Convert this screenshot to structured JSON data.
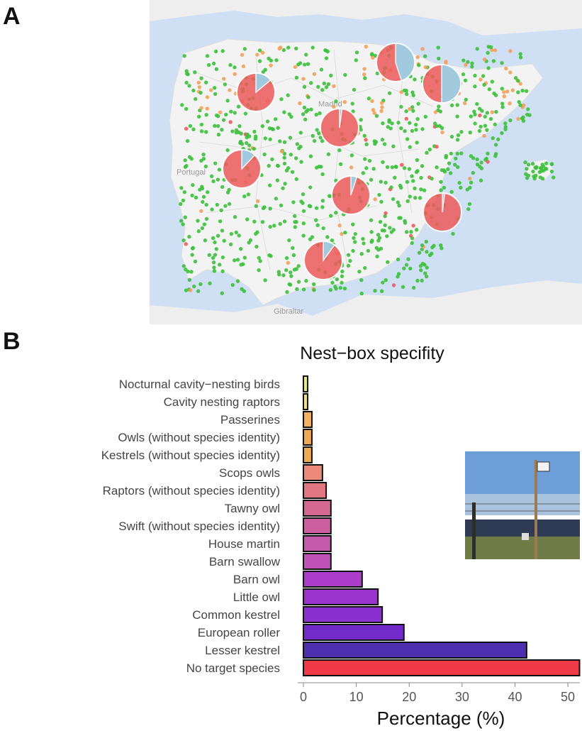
{
  "panel_labels": {
    "map": "A",
    "chart": "B"
  },
  "map": {
    "place_labels": [
      "Portugal",
      "Madrid",
      "Gibraltar"
    ],
    "colors": {
      "sea": "#cfe0f5",
      "land": "#f2f2f2",
      "green": "#3cc13c",
      "orange": "#f2a15a",
      "red": "#ee5b5b",
      "blue": "#9ad4ec"
    },
    "pies": [
      {
        "region": "northwest",
        "shares": {
          "red": 0.86,
          "blue": 0.14
        }
      },
      {
        "region": "north-central",
        "shares": {
          "red": 0.55,
          "blue": 0.45
        }
      },
      {
        "region": "northeast",
        "shares": {
          "red": 0.5,
          "blue": 0.5
        }
      },
      {
        "region": "center",
        "shares": {
          "red": 0.98,
          "blue": 0.02
        }
      },
      {
        "region": "west",
        "shares": {
          "red": 0.88,
          "blue": 0.12
        }
      },
      {
        "region": "south-central",
        "shares": {
          "red": 0.95,
          "blue": 0.05
        }
      },
      {
        "region": "east",
        "shares": {
          "red": 0.98,
          "blue": 0.02
        }
      },
      {
        "region": "south",
        "shares": {
          "red": 0.9,
          "blue": 0.1
        }
      }
    ]
  },
  "chart_data": {
    "type": "bar",
    "orientation": "horizontal",
    "title": "Nest−box specifity",
    "xlabel": "Percentage (%)",
    "ylabel": "",
    "xlim": [
      0,
      52
    ],
    "xticks": [
      0,
      10,
      20,
      30,
      40,
      50
    ],
    "grid": false,
    "categories": [
      "Nocturnal cavity−nesting birds",
      "Cavity nesting raptors",
      "Passerines",
      "Owls (without species identity)",
      "Kestrels (without species identity)",
      "Scops owls",
      "Raptors (without species identity)",
      "Tawny owl",
      "Swift (without species identity)",
      "House martin",
      "Barn swallow",
      "Barn owl",
      "Little owl",
      "Common kestrel",
      "European roller",
      "Lesser kestrel",
      "No target species"
    ],
    "values": [
      0.8,
      0.8,
      1.6,
      1.6,
      1.6,
      3.6,
      4.3,
      5.2,
      5.2,
      5.2,
      5.2,
      11.1,
      14.1,
      14.9,
      19.0,
      42.2,
      52.2
    ],
    "colors": [
      "#e7ec76",
      "#f0e37b",
      "#f3b25b",
      "#f0a952",
      "#eeaa4e",
      "#eb8a78",
      "#e17881",
      "#d3698f",
      "#cc5fa0",
      "#c55aab",
      "#c052b5",
      "#ab3dcb",
      "#9a34cf",
      "#8a2fd0",
      "#722ac9",
      "#4e2fb0",
      "#f03a48"
    ]
  }
}
